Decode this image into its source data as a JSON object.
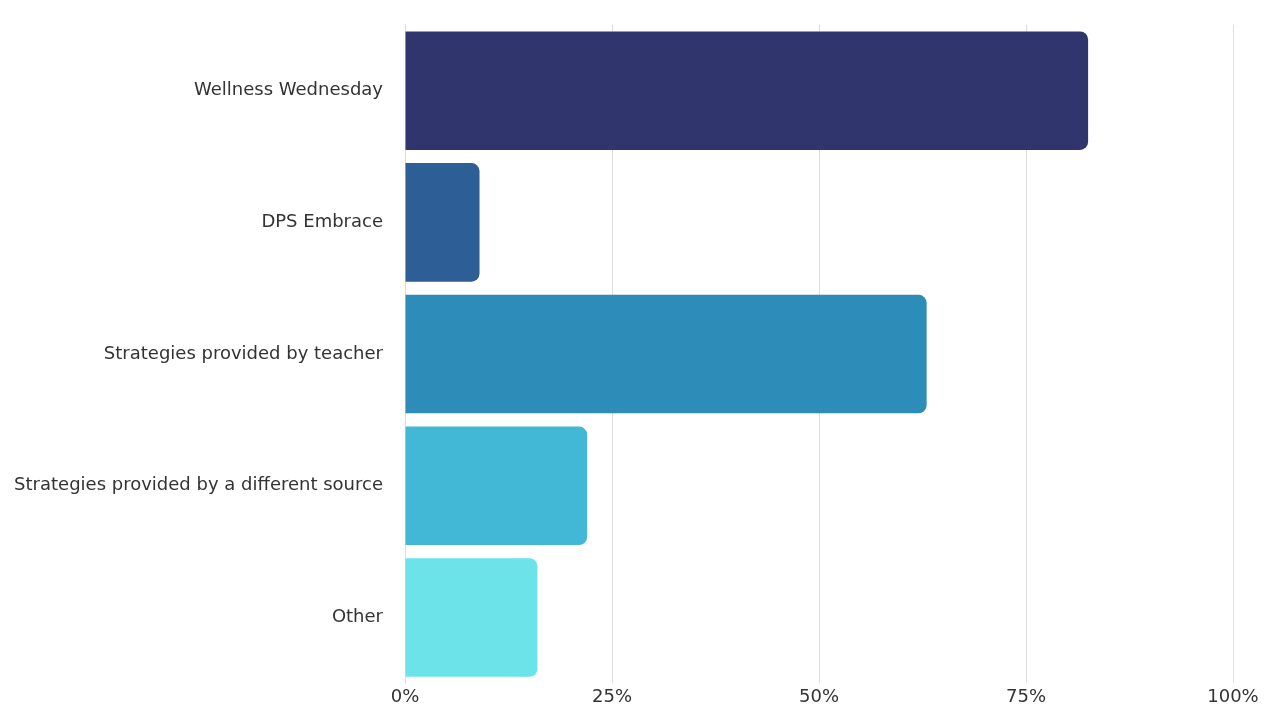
{
  "chart_data": {
    "type": "bar",
    "orientation": "horizontal",
    "categories": [
      "Wellness Wednesday",
      "DPS Embrace",
      "Strategies provided by teacher",
      "Strategies provided by a different source",
      "Other"
    ],
    "values": [
      82.5,
      9,
      63,
      22,
      16
    ],
    "colors": [
      "#31356e",
      "#2e5e96",
      "#2e8cb8",
      "#43b8d6",
      "#6be3e8"
    ],
    "xlim": [
      0,
      100
    ],
    "xticks": [
      {
        "value": 0,
        "label": "0%"
      },
      {
        "value": 25,
        "label": "25%"
      },
      {
        "value": 50,
        "label": "50%"
      },
      {
        "value": 75,
        "label": "75%"
      },
      {
        "value": 100,
        "label": "100%"
      }
    ],
    "grid": "x",
    "legend": false
  }
}
